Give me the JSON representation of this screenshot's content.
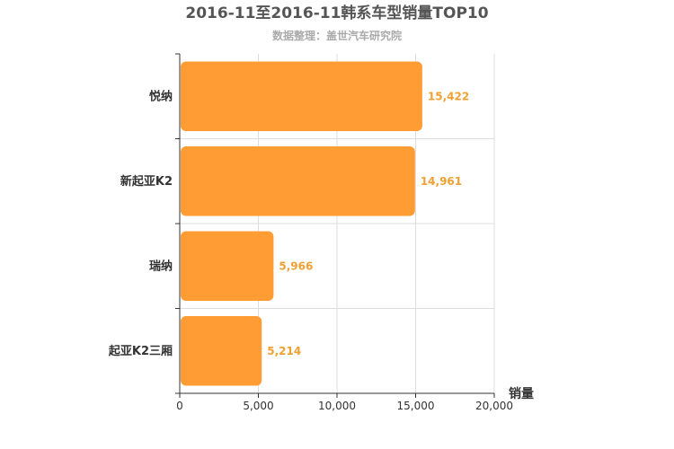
{
  "chart_data": {
    "type": "bar",
    "orientation": "horizontal",
    "title": "2016-11至2016-11韩系车型销量TOP10",
    "subtitle": "数据整理：盖世汽车研究院",
    "xlabel": "销量",
    "ylabel": "",
    "categories": [
      "悦纳",
      "新起亚K2",
      "瑞纳",
      "起亚K2三厢"
    ],
    "values": [
      15422,
      14961,
      5966,
      5214
    ],
    "value_labels": [
      "15,422",
      "14,961",
      "5,966",
      "5,214"
    ],
    "xlim": [
      0,
      20000
    ],
    "xticks": [
      0,
      5000,
      10000,
      15000,
      20000
    ],
    "xtick_labels": [
      "0",
      "5,000",
      "10,000",
      "15,000",
      "20,000"
    ],
    "grid": true,
    "legend": "none",
    "bar_color": "#FF9D34",
    "label_color": "#F0A030"
  }
}
